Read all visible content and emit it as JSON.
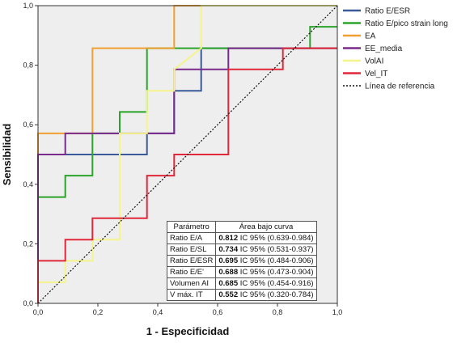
{
  "chart_data": {
    "type": "line",
    "xlabel": "1 - Especificidad",
    "ylabel": "Sensibilidad",
    "xlim": [
      0,
      1
    ],
    "ylim": [
      0,
      1
    ],
    "xticks": [
      "0,0",
      "0,2",
      "0,4",
      "0,6",
      "0,8",
      "1,0"
    ],
    "yticks": [
      "0,0",
      "0,2",
      "0,4",
      "0,6",
      "0,8",
      "1,0"
    ],
    "grid": false,
    "background": "#eeeeee",
    "legend_position": "right",
    "series": [
      {
        "name": "Ratio E/ESR",
        "color": "#3a5a9a",
        "x": [
          0,
          0,
          0.364,
          0.364,
          0.455,
          0.455,
          0.545,
          0.545,
          1
        ],
        "y": [
          0,
          0.5,
          0.5,
          0.571,
          0.571,
          0.714,
          0.714,
          0.857,
          0.857
        ]
      },
      {
        "name": "Ratio E/pico strain long",
        "color": "#2aa52a",
        "x": [
          0,
          0,
          0.091,
          0.091,
          0.182,
          0.182,
          0.273,
          0.273,
          0.364,
          0.364,
          0.909,
          0.909,
          1
        ],
        "y": [
          0,
          0.357,
          0.357,
          0.429,
          0.429,
          0.571,
          0.571,
          0.643,
          0.643,
          0.857,
          0.857,
          0.929,
          0.929
        ]
      },
      {
        "name": "EA",
        "color": "#f0a030",
        "x": [
          0,
          0,
          0.182,
          0.182,
          0.455,
          0.455,
          1
        ],
        "y": [
          0,
          0.571,
          0.571,
          0.857,
          0.857,
          1,
          1
        ]
      },
      {
        "name": "EE_media",
        "color": "#7a2a8a",
        "x": [
          0,
          0,
          0.091,
          0.091,
          0.455,
          0.455,
          0.636,
          0.636,
          1
        ],
        "y": [
          0,
          0.5,
          0.5,
          0.571,
          0.571,
          0.786,
          0.786,
          0.857,
          0.857
        ]
      },
      {
        "name": "VolAI",
        "color": "#f4f48a",
        "x": [
          0,
          0,
          0.091,
          0.091,
          0.182,
          0.182,
          0.273,
          0.273,
          0.364,
          0.364,
          0.455,
          0.455,
          0.545,
          0.545,
          1
        ],
        "y": [
          0,
          0.071,
          0.071,
          0.143,
          0.143,
          0.214,
          0.214,
          0.571,
          0.571,
          0.714,
          0.714,
          0.786,
          0.857,
          1,
          1
        ]
      },
      {
        "name": "Vel_IT",
        "color": "#e0283a",
        "x": [
          0,
          0,
          0.091,
          0.091,
          0.182,
          0.182,
          0.364,
          0.364,
          0.455,
          0.455,
          0.636,
          0.636,
          0.818,
          0.818,
          1
        ],
        "y": [
          0,
          0.143,
          0.143,
          0.214,
          0.214,
          0.286,
          0.286,
          0.429,
          0.429,
          0.5,
          0.5,
          0.786,
          0.786,
          0.857,
          0.857
        ]
      }
    ],
    "reference_line": {
      "name": "Línea de referencia",
      "color": "#111111",
      "x": [
        0,
        1
      ],
      "y": [
        0,
        1
      ]
    },
    "auc_table": {
      "headers": [
        "Parámetro",
        "Área bajo curva"
      ],
      "rows": [
        {
          "name": "Ratio E/A",
          "auc": "0.812",
          "ci": "IC 95% (0.639-0.984)"
        },
        {
          "name": "Ratio E/SL",
          "auc": "0.734",
          "ci": "IC 95% (0.531-0.937)"
        },
        {
          "name": "Ratio E/ESR",
          "auc": "0.695",
          "ci": "IC 95% (0.484-0.906)"
        },
        {
          "name": "Ratio E/E'",
          "auc": "0.688",
          "ci": "IC 95% (0.473-0.904)"
        },
        {
          "name": "Volumen AI",
          "auc": "0.685",
          "ci": "IC 95% (0.454-0.916)"
        },
        {
          "name": "V máx. IT",
          "auc": "0.552",
          "ci": "IC 95% (0.320-0.784)"
        }
      ]
    }
  }
}
